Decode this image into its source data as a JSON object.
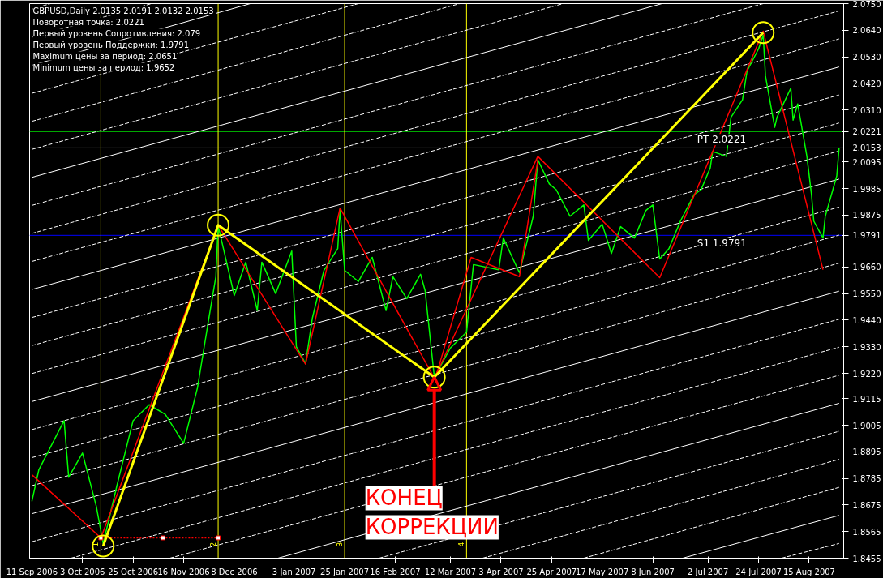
{
  "chart_data": {
    "type": "line",
    "title": "GBPUSD,Daily  2.0135 2.0191 2.0132 2.0153",
    "annotations": [
      "Поворотная точка: 2.0221",
      "Первый уровень Сопротивления: 2.079",
      "Первый уровень Поддержки: 1.9791",
      "Maximum цены за период: 2.0651",
      "Minimum цены за период: 1.9652",
      {
        "text": "КОНЕЦ\nКОРРЕКЦИИ",
        "x": "2007-03-05",
        "y": 1.9204
      }
    ],
    "xlim": [
      "2006-09-10",
      "2007-08-30"
    ],
    "ylim": [
      1.8455,
      2.075
    ],
    "xticks": [
      {
        "value": "2006-09-11",
        "label": "11 Sep 2006"
      },
      {
        "value": "2006-10-03",
        "label": "3 Oct 2006"
      },
      {
        "value": "2006-10-25",
        "label": "25 Oct 2006"
      },
      {
        "value": "2006-11-16",
        "label": "16 Nov 2006"
      },
      {
        "value": "2006-12-08",
        "label": "8 Dec 2006"
      },
      {
        "value": "2007-01-03",
        "label": "3 Jan 2007"
      },
      {
        "value": "2007-01-25",
        "label": "25 Jan 2007"
      },
      {
        "value": "2007-02-16",
        "label": "16 Feb 2007"
      },
      {
        "value": "2007-03-12",
        "label": "12 Mar 2007"
      },
      {
        "value": "2007-04-03",
        "label": "3 Apr 2007"
      },
      {
        "value": "2007-04-25",
        "label": "25 Apr 2007"
      },
      {
        "value": "2007-05-17",
        "label": "17 May 2007"
      },
      {
        "value": "2007-06-08",
        "label": "8 Jun 2007"
      },
      {
        "value": "2007-07-02",
        "label": "2 Jul 2007"
      },
      {
        "value": "2007-07-24",
        "label": "24 Jul 2007"
      },
      {
        "value": "2007-08-15",
        "label": "15 Aug 2007"
      }
    ],
    "yticks": [
      {
        "value": 1.8455,
        "label": "1.8455"
      },
      {
        "value": 1.8565,
        "label": "1.8565"
      },
      {
        "value": 1.8675,
        "label": "1.8675"
      },
      {
        "value": 1.8785,
        "label": "1.8785"
      },
      {
        "value": 1.8895,
        "label": "1.8895"
      },
      {
        "value": 1.9005,
        "label": "1.9005"
      },
      {
        "value": 1.9115,
        "label": "1.9115"
      },
      {
        "value": 1.922,
        "label": "1.9220"
      },
      {
        "value": 1.933,
        "label": "1.9330"
      },
      {
        "value": 1.944,
        "label": "1.9440"
      },
      {
        "value": 1.955,
        "label": "1.9550"
      },
      {
        "value": 1.966,
        "label": "1.9660"
      },
      {
        "value": 1.9791,
        "label": "1.9791"
      },
      {
        "value": 1.9875,
        "label": "1.9875"
      },
      {
        "value": 1.9985,
        "label": "1.9985"
      },
      {
        "value": 2.0095,
        "label": "2.0095"
      },
      {
        "value": 2.0153,
        "label": "2.0153"
      },
      {
        "value": 2.0221,
        "label": "2.0221"
      },
      {
        "value": 2.031,
        "label": "2.0310"
      },
      {
        "value": 2.042,
        "label": "2.0420"
      },
      {
        "value": 2.053,
        "label": "2.0530"
      },
      {
        "value": 2.064,
        "label": "2.0640"
      },
      {
        "value": 2.075,
        "label": "2.0750"
      }
    ],
    "grid": false,
    "ref_lines": [
      {
        "axis": "y",
        "value": 2.0221,
        "label": "PT 2.0221",
        "color": "#00ff00"
      },
      {
        "axis": "y",
        "value": 2.0153,
        "label": null,
        "color": "#a0a0a0"
      },
      {
        "axis": "y",
        "value": 1.9791,
        "label": "S1 1.9791",
        "color": "#0000ff"
      },
      {
        "axis": "x",
        "value": "2006-10-11",
        "label": "1",
        "color": "#ffff00"
      },
      {
        "axis": "x",
        "value": "2006-12-01",
        "label": "2",
        "color": "#ffff00"
      },
      {
        "axis": "x",
        "value": "2007-01-25",
        "label": "3",
        "color": "#ffff00"
      },
      {
        "axis": "x",
        "value": "2007-03-19",
        "label": "4",
        "color": "#ffff00"
      }
    ],
    "series": [
      {
        "color": "#ffffff",
        "line_style": "dashed",
        "x": [
          "2007-08-03",
          "2007-08-28"
        ],
        "values": [
          1.8455,
          1.8516
        ]
      },
      {
        "color": "#ffffff",
        "line_style": "solid",
        "x": [
          "2007-06-21",
          "2007-08-28"
        ],
        "values": [
          1.8455,
          1.8632
        ]
      },
      {
        "color": "#ffffff",
        "line_style": "dashed",
        "x": [
          "2007-05-09",
          "2007-08-28"
        ],
        "values": [
          1.8455,
          1.8748
        ]
      },
      {
        "color": "#ffffff",
        "line_style": "dashed",
        "x": [
          "2007-03-26",
          "2007-08-28"
        ],
        "values": [
          1.8455,
          1.8864
        ]
      },
      {
        "color": "#ffffff",
        "line_style": "dashed",
        "x": [
          "2007-02-09",
          "2007-08-28"
        ],
        "values": [
          1.8455,
          1.898
        ]
      },
      {
        "color": "#ffffff",
        "line_style": "solid",
        "x": [
          "2006-12-27",
          "2007-08-28"
        ],
        "values": [
          1.8455,
          1.9096
        ]
      },
      {
        "color": "#ffffff",
        "line_style": "dashed",
        "x": [
          "2006-11-10",
          "2007-08-28"
        ],
        "values": [
          1.8455,
          1.9212
        ]
      },
      {
        "color": "#ffffff",
        "line_style": "dashed",
        "x": [
          "2006-09-28",
          "2007-08-28"
        ],
        "values": [
          1.8455,
          1.9328
        ]
      },
      {
        "color": "#ffffff",
        "line_style": "dashed",
        "x": [
          "2006-09-11",
          "2007-08-28"
        ],
        "values": [
          1.8523,
          1.9444
        ]
      },
      {
        "color": "#ffffff",
        "line_style": "solid",
        "x": [
          "2006-09-11",
          "2007-08-28"
        ],
        "values": [
          1.8639,
          1.956
        ]
      },
      {
        "color": "#ffffff",
        "line_style": "dashed",
        "x": [
          "2006-09-11",
          "2007-08-28"
        ],
        "values": [
          1.8755,
          1.9676
        ]
      },
      {
        "color": "#ffffff",
        "line_style": "dashed",
        "x": [
          "2006-09-11",
          "2007-08-28"
        ],
        "values": [
          1.8871,
          1.9792
        ]
      },
      {
        "color": "#ffffff",
        "line_style": "dashed",
        "x": [
          "2006-09-11",
          "2007-08-28"
        ],
        "values": [
          1.8987,
          1.9908
        ]
      },
      {
        "color": "#ffffff",
        "line_style": "solid",
        "x": [
          "2006-09-11",
          "2007-08-28"
        ],
        "values": [
          1.9103,
          2.0024
        ]
      },
      {
        "color": "#ffffff",
        "line_style": "dashed",
        "x": [
          "2006-09-11",
          "2007-08-28"
        ],
        "values": [
          1.9219,
          2.014
        ]
      },
      {
        "color": "#ffffff",
        "line_style": "dashed",
        "x": [
          "2006-09-11",
          "2007-08-28"
        ],
        "values": [
          1.9335,
          2.0256
        ]
      },
      {
        "color": "#ffffff",
        "line_style": "dashed",
        "x": [
          "2006-09-11",
          "2007-08-28"
        ],
        "values": [
          1.9451,
          2.0372
        ]
      },
      {
        "color": "#ffffff",
        "line_style": "solid",
        "x": [
          "2006-09-11",
          "2007-08-28"
        ],
        "values": [
          1.9567,
          2.0488
        ]
      },
      {
        "color": "#ffffff",
        "line_style": "dashed",
        "x": [
          "2006-09-11",
          "2007-08-28"
        ],
        "values": [
          1.9683,
          2.0604
        ]
      },
      {
        "color": "#ffffff",
        "line_style": "dashed",
        "x": [
          "2006-09-11",
          "2007-08-28"
        ],
        "values": [
          1.9799,
          2.072
        ]
      },
      {
        "color": "#ffffff",
        "line_style": "dashed",
        "x": [
          "2006-09-11",
          "2007-07-26"
        ],
        "values": [
          1.9915,
          2.075
        ]
      },
      {
        "color": "#ffffff",
        "line_style": "solid",
        "x": [
          "2006-09-11",
          "2007-06-12"
        ],
        "values": [
          2.0031,
          2.075
        ]
      },
      {
        "color": "#ffffff",
        "line_style": "dashed",
        "x": [
          "2006-09-11",
          "2007-04-30"
        ],
        "values": [
          2.0147,
          2.075
        ]
      },
      {
        "color": "#ffffff",
        "line_style": "dashed",
        "x": [
          "2006-09-11",
          "2007-03-16"
        ],
        "values": [
          2.0263,
          2.075
        ]
      },
      {
        "color": "#ffffff",
        "line_style": "dashed",
        "x": [
          "2006-09-11",
          "2007-01-31"
        ],
        "values": [
          2.0379,
          2.075
        ]
      },
      {
        "color": "#ffffff",
        "line_style": "solid",
        "x": [
          "2006-09-11",
          "2006-12-15"
        ],
        "values": [
          2.0495,
          2.075
        ]
      },
      {
        "color": "#ffffff",
        "line_style": "dashed",
        "x": [
          "2006-09-11",
          "2006-11-02"
        ],
        "values": [
          2.0611,
          2.075
        ]
      },
      {
        "color": "#ffffff",
        "line_style": "dashed",
        "x": [
          "2006-09-11",
          "2006-09-19"
        ],
        "values": [
          2.0727,
          2.075
        ]
      },
      {
        "color": "#00ff00",
        "line_style": "solid",
        "x": [
          "2006-09-11",
          "2006-09-14",
          "2006-09-25",
          "2006-09-27",
          "2006-10-03",
          "2006-10-09",
          "2006-10-12",
          "2006-10-18",
          "2006-10-25",
          "2006-11-01",
          "2006-11-08",
          "2006-11-16",
          "2006-11-22",
          "2006-11-27",
          "2006-11-30",
          "2006-12-01",
          "2006-12-08",
          "2006-12-13",
          "2006-12-18",
          "2006-12-20",
          "2006-12-26",
          "2007-01-02",
          "2007-01-04",
          "2007-01-08",
          "2007-01-11",
          "2007-01-16",
          "2007-01-22",
          "2007-01-23",
          "2007-01-25",
          "2007-01-31",
          "2007-02-06",
          "2007-02-12",
          "2007-02-15",
          "2007-02-21",
          "2007-02-27",
          "2007-03-01",
          "2007-03-05",
          "2007-03-12",
          "2007-03-19",
          "2007-03-22",
          "2007-04-02",
          "2007-04-04",
          "2007-04-11",
          "2007-04-17",
          "2007-04-19",
          "2007-04-24",
          "2007-04-27",
          "2007-05-03",
          "2007-05-09",
          "2007-05-11",
          "2007-05-17",
          "2007-05-21",
          "2007-05-25",
          "2007-05-31",
          "2007-06-05",
          "2007-06-08",
          "2007-06-11",
          "2007-06-15",
          "2007-06-20",
          "2007-06-26",
          "2007-06-29",
          "2007-07-03",
          "2007-07-04",
          "2007-07-10",
          "2007-07-12",
          "2007-07-17",
          "2007-07-19",
          "2007-07-24",
          "2007-07-26",
          "2007-07-27",
          "2007-07-31",
          "2007-08-01",
          "2007-08-07",
          "2007-08-08",
          "2007-08-10",
          "2007-08-14",
          "2007-08-16",
          "2007-08-17",
          "2007-08-21",
          "2007-08-22",
          "2007-08-27",
          "2007-08-28"
        ],
        "values": [
          1.869,
          1.882,
          1.9024,
          1.879,
          1.889,
          1.867,
          1.8515,
          1.8756,
          1.9024,
          1.909,
          1.905,
          1.893,
          1.916,
          1.945,
          1.962,
          1.983,
          1.9542,
          1.968,
          1.948,
          1.968,
          1.955,
          1.9726,
          1.933,
          1.926,
          1.945,
          1.9646,
          1.9736,
          1.9897,
          1.9646,
          1.96,
          1.97,
          1.948,
          1.962,
          1.9529,
          1.963,
          1.9562,
          1.9204,
          1.9325,
          1.939,
          1.967,
          1.9649,
          1.978,
          1.9636,
          1.987,
          2.0104,
          2.0004,
          1.998,
          1.987,
          1.9917,
          1.977,
          1.9837,
          1.9716,
          1.9827,
          1.978,
          1.9894,
          1.9917,
          1.9693,
          1.9736,
          1.985,
          1.996,
          1.998,
          2.0071,
          2.0138,
          2.0118,
          2.028,
          2.0352,
          2.0472,
          2.0563,
          2.062,
          2.045,
          2.0238,
          2.028,
          2.04,
          2.0268,
          2.0335,
          2.0118,
          1.996,
          1.985,
          1.978,
          1.987,
          2.0037,
          2.0153
        ]
      },
      {
        "color": "#ff0000",
        "line_style": "solid",
        "x": [
          "2006-09-11",
          "2006-10-11",
          "2006-12-01",
          "2007-01-08",
          "2007-01-23",
          "2007-03-05",
          "2007-04-19",
          "2007-06-11",
          "2007-07-26",
          "2007-08-21"
        ],
        "values": [
          1.88,
          1.8539,
          1.9833,
          1.9258,
          1.9904,
          1.92,
          2.0118,
          1.9616,
          2.0636,
          1.9649
        ]
      },
      {
        "color": "#ff0000",
        "line_style": "dotted",
        "marker": "square",
        "x": [
          "2006-10-11",
          "2006-11-07",
          "2006-12-01"
        ],
        "values": [
          1.8539,
          1.8539,
          1.8539
        ]
      },
      {
        "color": "#ff0000",
        "line_style": "solid",
        "x": [
          "2007-03-06",
          "2007-03-21",
          "2007-04-11",
          "2007-04-19"
        ],
        "values": [
          1.9218,
          1.97,
          1.962,
          2.0104
        ]
      },
      {
        "color": "#ffff00",
        "line_style": "solid",
        "marker": "circle",
        "x": [
          "2006-10-12",
          "2006-12-01",
          "2007-03-05",
          "2007-07-26"
        ],
        "values": [
          1.8505,
          1.9833,
          1.9204,
          2.063
        ]
      }
    ]
  }
}
